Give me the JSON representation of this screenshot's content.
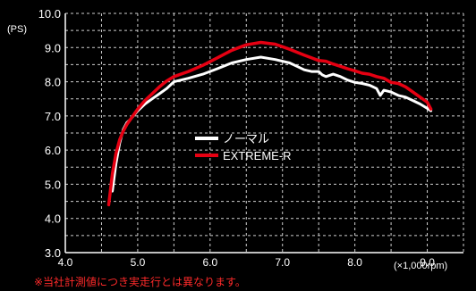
{
  "chart_data": {
    "type": "line",
    "title": "",
    "ylabel": "(PS)",
    "xlabel": "(×1,000rpm)",
    "xlim": [
      4.0,
      9.5
    ],
    "ylim": [
      3.0,
      10.0
    ],
    "x_ticks": [
      "4.0",
      "5.0",
      "6.0",
      "7.0",
      "8.0",
      "9.0"
    ],
    "y_ticks": [
      "3.0",
      "4.0",
      "5.0",
      "6.0",
      "7.0",
      "8.0",
      "9.0",
      "10.0"
    ],
    "grid": true,
    "legend_position": "center",
    "series": [
      {
        "name": "ノーマル",
        "color": "#ffffff",
        "points": [
          [
            4.65,
            4.8
          ],
          [
            4.7,
            5.6
          ],
          [
            4.75,
            6.2
          ],
          [
            4.8,
            6.6
          ],
          [
            4.85,
            6.8
          ],
          [
            4.9,
            6.9
          ],
          [
            5.0,
            7.15
          ],
          [
            5.1,
            7.35
          ],
          [
            5.2,
            7.5
          ],
          [
            5.3,
            7.65
          ],
          [
            5.4,
            7.8
          ],
          [
            5.5,
            8.0
          ],
          [
            5.7,
            8.1
          ],
          [
            5.9,
            8.22
          ],
          [
            6.1,
            8.38
          ],
          [
            6.3,
            8.55
          ],
          [
            6.5,
            8.65
          ],
          [
            6.7,
            8.72
          ],
          [
            6.9,
            8.65
          ],
          [
            7.1,
            8.55
          ],
          [
            7.2,
            8.45
          ],
          [
            7.3,
            8.35
          ],
          [
            7.4,
            8.3
          ],
          [
            7.5,
            8.3
          ],
          [
            7.55,
            8.2
          ],
          [
            7.6,
            8.15
          ],
          [
            7.7,
            8.22
          ],
          [
            7.8,
            8.15
          ],
          [
            7.9,
            8.05
          ],
          [
            8.0,
            7.98
          ],
          [
            8.1,
            7.95
          ],
          [
            8.2,
            7.9
          ],
          [
            8.3,
            7.8
          ],
          [
            8.35,
            7.6
          ],
          [
            8.4,
            7.75
          ],
          [
            8.5,
            7.7
          ],
          [
            8.6,
            7.6
          ],
          [
            8.7,
            7.55
          ],
          [
            8.8,
            7.45
          ],
          [
            8.9,
            7.35
          ],
          [
            9.0,
            7.22
          ],
          [
            9.05,
            7.15
          ]
        ]
      },
      {
        "name": "EXTREME-R",
        "color": "#e60012",
        "points": [
          [
            4.6,
            4.4
          ],
          [
            4.65,
            5.3
          ],
          [
            4.7,
            5.9
          ],
          [
            4.75,
            6.3
          ],
          [
            4.8,
            6.55
          ],
          [
            4.85,
            6.75
          ],
          [
            4.9,
            6.9
          ],
          [
            5.0,
            7.2
          ],
          [
            5.1,
            7.45
          ],
          [
            5.2,
            7.65
          ],
          [
            5.3,
            7.85
          ],
          [
            5.4,
            8.02
          ],
          [
            5.5,
            8.15
          ],
          [
            5.7,
            8.3
          ],
          [
            5.9,
            8.48
          ],
          [
            6.1,
            8.7
          ],
          [
            6.3,
            8.92
          ],
          [
            6.5,
            9.08
          ],
          [
            6.7,
            9.15
          ],
          [
            6.9,
            9.1
          ],
          [
            7.1,
            8.95
          ],
          [
            7.3,
            8.78
          ],
          [
            7.4,
            8.7
          ],
          [
            7.5,
            8.62
          ],
          [
            7.6,
            8.6
          ],
          [
            7.7,
            8.52
          ],
          [
            7.8,
            8.45
          ],
          [
            7.9,
            8.38
          ],
          [
            8.0,
            8.32
          ],
          [
            8.1,
            8.25
          ],
          [
            8.2,
            8.22
          ],
          [
            8.3,
            8.15
          ],
          [
            8.4,
            8.1
          ],
          [
            8.5,
            7.98
          ],
          [
            8.6,
            7.95
          ],
          [
            8.7,
            7.85
          ],
          [
            8.8,
            7.7
          ],
          [
            8.9,
            7.55
          ],
          [
            9.0,
            7.4
          ],
          [
            9.05,
            7.2
          ]
        ]
      }
    ]
  },
  "footnote": "※当社計測値につき実走行とは異なります。"
}
